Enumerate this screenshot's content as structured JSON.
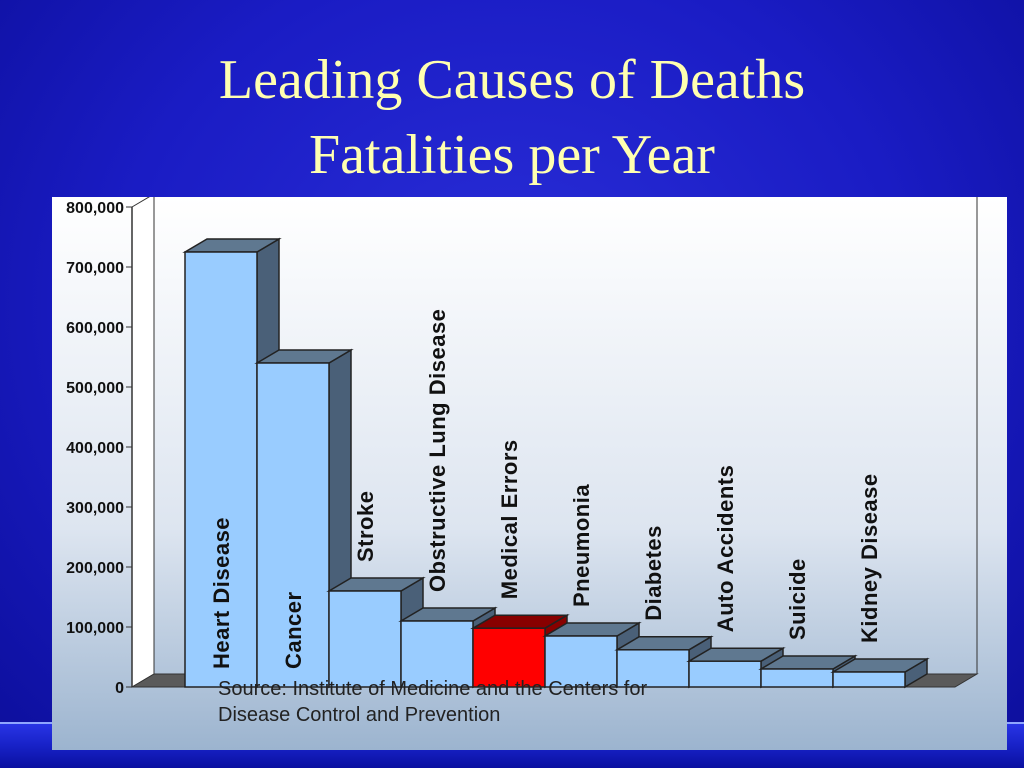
{
  "slide": {
    "title_line_1": "Leading Causes of Deaths",
    "title_line_2": "Fatalities per Year",
    "source_line_1": "Source:  Institute of Medicine and the Centers for",
    "source_line_2": "Disease Control and Prevention"
  },
  "colors": {
    "background": "#1a1cc4",
    "title": "#ffffb0",
    "bar_front": "#99ccff",
    "bar_side": "#4a6078",
    "bar_top": "#5f7890",
    "highlight_front": "#ff0000",
    "highlight_side": "#880000"
  },
  "chart_data": {
    "type": "bar",
    "title": "Leading Causes of Deaths Fatalities per Year",
    "three_d": true,
    "ylim": [
      0,
      800000
    ],
    "yticks": [
      0,
      100000,
      200000,
      300000,
      400000,
      500000,
      600000,
      700000,
      800000
    ],
    "ytick_labels": [
      "0",
      "100,000",
      "200,000",
      "300,000",
      "400,000",
      "500,000",
      "600,000",
      "700,000",
      "800,000"
    ],
    "categories": [
      "Heart Disease",
      "Cancer",
      "Stroke",
      "Obstructive Lung Disease",
      "Medical Errors",
      "Pneumonia",
      "Diabetes",
      "Auto Accidents",
      "Suicide",
      "Kidney Disease"
    ],
    "values": [
      725000,
      540000,
      160000,
      110000,
      98000,
      85000,
      62000,
      43000,
      30000,
      25000
    ],
    "highlighted_category": "Medical Errors",
    "grid": false
  }
}
